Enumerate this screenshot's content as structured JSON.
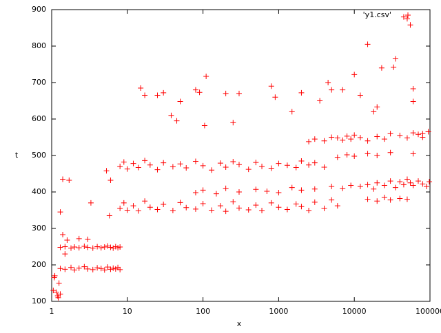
{
  "chart_data": {
    "type": "scatter",
    "x_label": "x",
    "y_label": "t",
    "log_x": true,
    "xlim": [
      1,
      100000
    ],
    "xticks": [
      1,
      10,
      100,
      1000,
      10000,
      100000
    ],
    "ylim": [
      100,
      900
    ],
    "yticks": [
      100,
      200,
      300,
      400,
      500,
      600,
      700,
      800,
      900
    ],
    "legend": "top-right",
    "x": [
      1.05,
      1.08,
      1.1,
      1.15,
      1.2,
      1.22,
      1.25,
      1.3,
      1.3,
      1.5,
      1.8,
      2,
      2.3,
      2.7,
      3,
      3.5,
      4,
      4.5,
      5,
      5.5,
      6,
      6.5,
      7,
      7.5,
      8,
      1.3,
      1.5,
      1.8,
      2,
      2.3,
      2.7,
      3,
      3.5,
      4,
      4.5,
      5,
      5.5,
      6,
      6.5,
      7,
      7.5,
      8,
      1.3,
      1.4,
      1.4,
      1.5,
      1.6,
      1.7,
      2.3,
      3,
      3.3,
      5.3,
      5.8,
      6,
      8,
      9,
      10,
      12,
      14,
      17,
      20,
      25,
      30,
      40,
      50,
      60,
      80,
      100,
      130,
      170,
      200,
      250,
      300,
      400,
      500,
      600,
      800,
      1000,
      1300,
      1700,
      2000,
      2500,
      3000,
      4000,
      5000,
      6000,
      8,
      9,
      10,
      12,
      14,
      17,
      20,
      25,
      30,
      40,
      50,
      60,
      80,
      100,
      130,
      170,
      200,
      250,
      300,
      400,
      500,
      600,
      800,
      1000,
      1300,
      1700,
      2000,
      2500,
      3000,
      4000,
      80,
      100,
      150,
      200,
      300,
      500,
      700,
      1000,
      1500,
      2000,
      3000,
      5000,
      7000,
      9000,
      2500,
      3000,
      4000,
      5000,
      6000,
      7000,
      8000,
      9000,
      10000,
      12000,
      12000,
      15000,
      18000,
      20000,
      25000,
      30000,
      35000,
      40000,
      45000,
      50000,
      55000,
      60000,
      70000,
      80000,
      90000,
      98000,
      15000,
      20000,
      25000,
      30000,
      40000,
      50000,
      60000,
      80000,
      15000,
      20000,
      25000,
      30000,
      40000,
      50000,
      60000,
      70000,
      80000,
      95000,
      6000,
      8000,
      10000,
      15000,
      20000,
      30000,
      15,
      17,
      25,
      30,
      38,
      45,
      50,
      80,
      90,
      110,
      105,
      200,
      300,
      250,
      800,
      900,
      1500,
      2000,
      3500,
      4500,
      5000,
      7000,
      10000,
      12000,
      15000,
      18000,
      20000,
      23000,
      33000,
      35000,
      45000,
      55000,
      60000,
      60000,
      50000
    ],
    "series": [
      {
        "name": "'y1.csv'",
        "color": "#ff0000",
        "values": [
          130,
          165,
          170,
          125,
          115,
          110,
          150,
          120,
          248,
          250,
          246,
          249,
          247,
          251,
          248,
          246,
          250,
          247,
          249,
          252,
          248,
          246,
          250,
          247,
          249,
          190,
          188,
          193,
          186,
          191,
          195,
          189,
          187,
          192,
          190,
          186,
          194,
          188,
          191,
          189,
          193,
          187,
          345,
          435,
          283,
          230,
          268,
          432,
          272,
          270,
          370,
          458,
          335,
          432,
          355,
          370,
          350,
          362,
          348,
          375,
          358,
          352,
          366,
          349,
          371,
          357,
          353,
          368,
          350,
          362,
          347,
          373,
          356,
          351,
          364,
          349,
          370,
          358,
          352,
          367,
          360,
          349,
          372,
          355,
          378,
          362,
          470,
          482,
          463,
          478,
          467,
          486,
          474,
          461,
          480,
          469,
          477,
          466,
          484,
          472,
          460,
          479,
          468,
          483,
          475,
          462,
          481,
          470,
          465,
          478,
          473,
          467,
          485,
          474,
          480,
          468,
          398,
          405,
          395,
          410,
          400,
          407,
          402,
          398,
          412,
          405,
          408,
          415,
          410,
          418,
          538,
          545,
          540,
          550,
          548,
          542,
          553,
          545,
          556,
          549,
          415,
          420,
          408,
          425,
          418,
          430,
          412,
          428,
          420,
          435,
          425,
          418,
          430,
          422,
          415,
          428,
          380,
          375,
          385,
          378,
          382,
          380,
          505,
          560,
          540,
          552,
          545,
          560,
          555,
          548,
          562,
          558,
          550,
          565,
          495,
          502,
          498,
          505,
          500,
          508,
          685,
          665,
          665,
          672,
          610,
          595,
          648,
          680,
          673,
          717,
          582,
          670,
          670,
          590,
          690,
          660,
          620,
          672,
          650,
          700,
          680,
          680,
          722,
          665,
          805,
          620,
          633,
          740,
          742,
          765,
          880,
          858,
          683,
          648,
          875
        ]
      }
    ]
  }
}
